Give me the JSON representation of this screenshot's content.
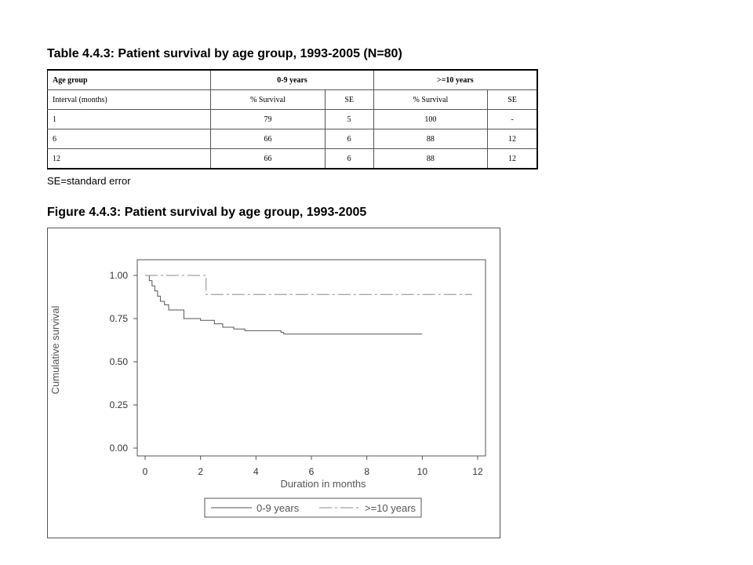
{
  "table": {
    "title": "Table 4.4.3: Patient survival by age group, 1993-2005 (N=80)",
    "header": [
      "Age group",
      "0-9 years",
      ">=10 years"
    ],
    "subheader": [
      "Interval (months)",
      "% Survival",
      "SE",
      "% Survival",
      "SE"
    ],
    "rows": [
      [
        "1",
        "79",
        "5",
        "100",
        "-"
      ],
      [
        "6",
        "66",
        "6",
        "88",
        "12"
      ],
      [
        "12",
        "66",
        "6",
        "88",
        "12"
      ]
    ],
    "footnote": "SE=standard error"
  },
  "figure": {
    "title": "Figure 4.4.3: Patient survival by age group, 1993-2005"
  },
  "chart_data": {
    "type": "line",
    "subtype": "kaplan-meier step",
    "xlabel": "Duration in months",
    "ylabel": "Cumulative survival",
    "xlim": [
      0,
      12
    ],
    "ylim": [
      0,
      1
    ],
    "xticks": [
      "0",
      "2",
      "4",
      "6",
      "8",
      "10",
      "12"
    ],
    "yticks": [
      "0.00",
      "0.25",
      "0.50",
      "0.75",
      "1.00"
    ],
    "legend_position": "bottom",
    "series": [
      {
        "name": "0-9 years",
        "style": "solid",
        "color": "#555555",
        "x": [
          0,
          0.15,
          0.25,
          0.35,
          0.45,
          0.55,
          0.7,
          0.85,
          1.4,
          2.0,
          2.5,
          2.8,
          3.2,
          3.6,
          4.9,
          5.0,
          10.0
        ],
        "y": [
          1.0,
          0.97,
          0.94,
          0.91,
          0.88,
          0.85,
          0.83,
          0.8,
          0.75,
          0.74,
          0.72,
          0.7,
          0.69,
          0.68,
          0.67,
          0.66,
          0.66
        ]
      },
      {
        "name": ">=10 years",
        "style": "dash-dot",
        "color": "#888888",
        "x": [
          0,
          2.2,
          2.2,
          11.8
        ],
        "y": [
          1.0,
          1.0,
          0.89,
          0.89
        ]
      }
    ]
  }
}
